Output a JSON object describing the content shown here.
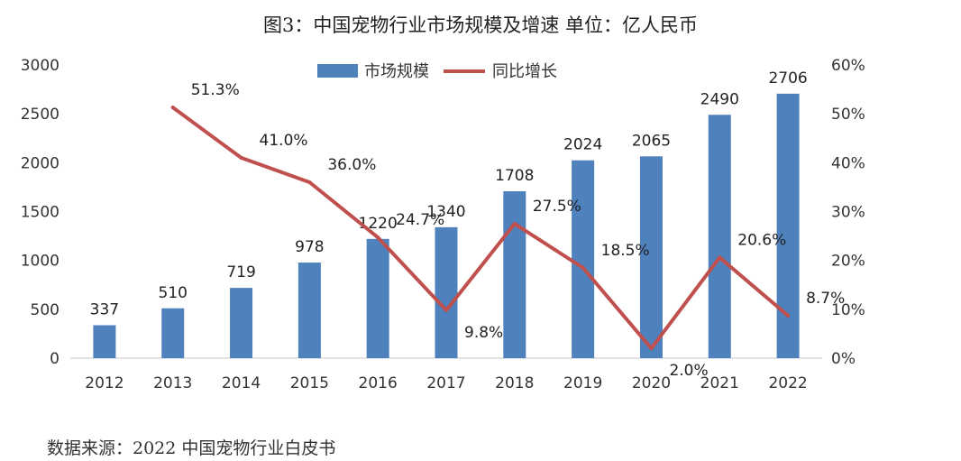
{
  "title": "图3：中国宠物行业市场规模及增速 单位：亿人民币",
  "source": "数据来源：2022 中国宠物行业白皮书",
  "chart_data": {
    "type": "bar",
    "categories": [
      "2012",
      "2013",
      "2014",
      "2015",
      "2016",
      "2017",
      "2018",
      "2019",
      "2020",
      "2021",
      "2022"
    ],
    "series": [
      {
        "name": "市场规模",
        "type": "bar",
        "axis": "left",
        "color": "#4f81bd",
        "values": [
          337,
          510,
          719,
          978,
          1220,
          1340,
          1708,
          2024,
          2065,
          2490,
          2706
        ],
        "labels": [
          "337",
          "510",
          "719",
          "978",
          "1220",
          "1340",
          "1708",
          "2024",
          "2065",
          "2490",
          "2706"
        ]
      },
      {
        "name": "同比增长",
        "type": "line",
        "axis": "right",
        "color": "#c0504d",
        "values": [
          null,
          51.3,
          41.0,
          36.0,
          24.7,
          9.8,
          27.5,
          18.5,
          2.0,
          20.6,
          8.7
        ],
        "labels": [
          null,
          "51.3%",
          "41.0%",
          "36.0%",
          "24.7%",
          "9.8%",
          "27.5%",
          "18.5%",
          "2.0%",
          "20.6%",
          "8.7%"
        ]
      }
    ],
    "y_left": {
      "min": 0,
      "max": 3000,
      "ticks": [
        "0",
        "500",
        "1000",
        "1500",
        "2000",
        "2500",
        "3000"
      ]
    },
    "y_right": {
      "min": 0,
      "max": 60,
      "ticks": [
        "0%",
        "10%",
        "20%",
        "30%",
        "40%",
        "50%",
        "60%"
      ]
    },
    "grid": false,
    "legend": "top-center"
  }
}
